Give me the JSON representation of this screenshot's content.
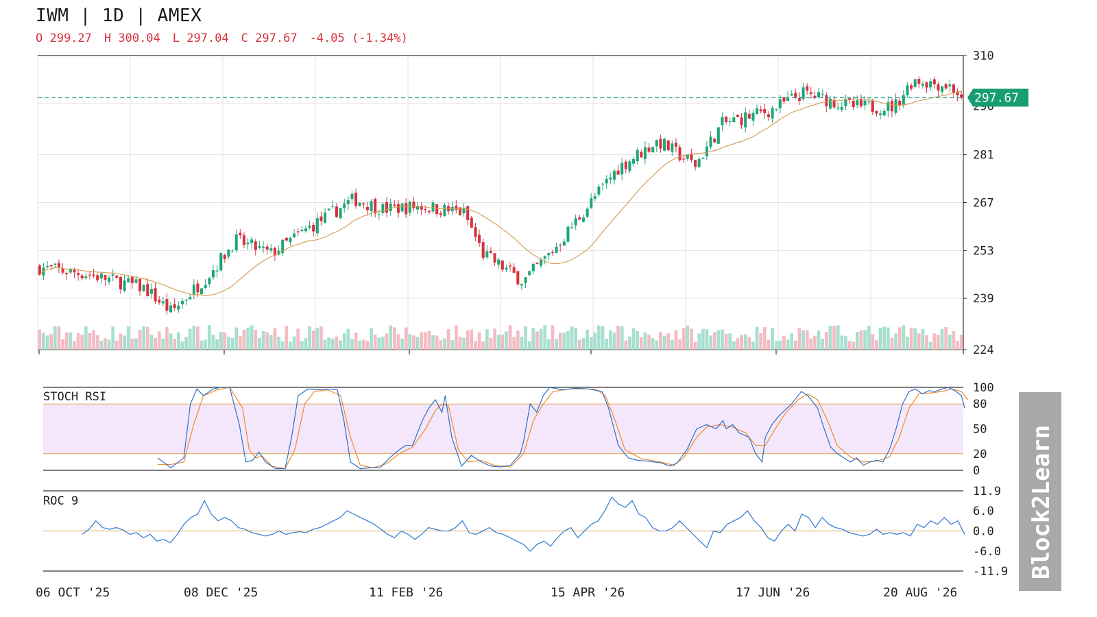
{
  "header": {
    "title": "IWM | 1D | AMEX",
    "open": "O 299.27",
    "high": "H 300.04",
    "low": "L 297.04",
    "close": "C 297.67",
    "change": "-4.05 (-1.34%)"
  },
  "watermark": "Block2Learn",
  "colors": {
    "up": "#1fa67a",
    "down": "#d8313e",
    "up_volume": "#a8dfd0",
    "down_volume": "#f3bcc3",
    "ma": "#d4a05a",
    "stoch_k": "#2c6fc9",
    "stoch_d": "#f08a2c",
    "roc": "#3b7fd6",
    "band_fill": "#f4e7fb",
    "level_line": "#d9a14a",
    "price_tag": "#179d72"
  },
  "chart_data": [
    {
      "type": "candlestick",
      "title": "IWM | 1D | AMEX",
      "x_tick_labels": [
        "06 OCT '25",
        "08 DEC '25",
        "11 FEB '26",
        "15 APR '26",
        "17 JUN '26",
        "20 AUG '26"
      ],
      "y_tick_labels": [
        "310",
        "281",
        "267",
        "253",
        "239",
        "224"
      ],
      "ylim": [
        224,
        310
      ],
      "last_price_label": "297.67",
      "last_price": 297.67,
      "overlay": "moving average",
      "volume_bars": true,
      "grid": true,
      "close_path": [
        {
          "x": "06 OCT '25",
          "y": 248
        },
        {
          "x": "24 OCT '25",
          "y": 246
        },
        {
          "x": "14 NOV '25",
          "y": 242
        },
        {
          "x": "24 NOV '25",
          "y": 235
        },
        {
          "x": "08 DEC '25",
          "y": 246
        },
        {
          "x": "18 DEC '25",
          "y": 256
        },
        {
          "x": "31 DEC '25",
          "y": 252
        },
        {
          "x": "15 JAN '26",
          "y": 260
        },
        {
          "x": "31 JAN '26",
          "y": 268
        },
        {
          "x": "11 FEB '26",
          "y": 265
        },
        {
          "x": "25 FEB '26",
          "y": 266
        },
        {
          "x": "13 MAR '26",
          "y": 264
        },
        {
          "x": "20 MAR '26",
          "y": 252
        },
        {
          "x": "04 APR '26",
          "y": 244
        },
        {
          "x": "15 APR '26",
          "y": 253
        },
        {
          "x": "24 APR '26",
          "y": 262
        },
        {
          "x": "09 MAY '26",
          "y": 277
        },
        {
          "x": "24 MAY '26",
          "y": 285
        },
        {
          "x": "07 JUN '26",
          "y": 278
        },
        {
          "x": "17 JUN '26",
          "y": 290
        },
        {
          "x": "05 JUL '26",
          "y": 294
        },
        {
          "x": "17 JUL '26",
          "y": 299
        },
        {
          "x": "05 AUG '26",
          "y": 295
        },
        {
          "x": "20 AUG '26",
          "y": 295
        },
        {
          "x": "27 AUG '26",
          "y": 303
        },
        {
          "x": "10 SEP '26",
          "y": 301
        },
        {
          "x": "14 SEP '26",
          "y": 297.67
        }
      ]
    },
    {
      "type": "line",
      "title": "STOCH RSI",
      "y_tick_labels": [
        "100",
        "80",
        "50",
        "20",
        "0"
      ],
      "ylim": [
        0,
        100
      ],
      "levels": [
        20,
        80
      ],
      "k_series": [
        [
          0.13,
          15
        ],
        [
          0.15,
          3
        ],
        [
          0.17,
          15
        ],
        [
          0.18,
          80
        ],
        [
          0.19,
          98
        ],
        [
          0.2,
          90
        ],
        [
          0.215,
          98
        ],
        [
          0.225,
          100
        ],
        [
          0.24,
          100
        ],
        [
          0.255,
          55
        ],
        [
          0.265,
          10
        ],
        [
          0.275,
          12
        ],
        [
          0.285,
          22
        ],
        [
          0.295,
          10
        ],
        [
          0.31,
          2
        ],
        [
          0.325,
          2
        ],
        [
          0.335,
          40
        ],
        [
          0.345,
          90
        ],
        [
          0.36,
          98
        ],
        [
          0.375,
          97
        ],
        [
          0.39,
          98
        ],
        [
          0.405,
          97
        ],
        [
          0.415,
          60
        ],
        [
          0.425,
          10
        ],
        [
          0.44,
          2
        ],
        [
          0.455,
          3
        ],
        [
          0.47,
          3
        ],
        [
          0.485,
          15
        ],
        [
          0.5,
          25
        ],
        [
          0.51,
          30
        ],
        [
          0.52,
          30
        ],
        [
          0.535,
          60
        ],
        [
          0.545,
          75
        ],
        [
          0.555,
          85
        ],
        [
          0.565,
          70
        ],
        [
          0.57,
          90
        ],
        [
          0.58,
          40
        ],
        [
          0.595,
          5
        ],
        [
          0.61,
          18
        ],
        [
          0.625,
          10
        ],
        [
          0.64,
          5
        ],
        [
          0.655,
          4
        ],
        [
          0.67,
          6
        ],
        [
          0.685,
          20
        ],
        [
          0.69,
          35
        ],
        [
          0.7,
          80
        ],
        [
          0.71,
          70
        ],
        [
          0.72,
          90
        ],
        [
          0.73,
          100
        ],
        [
          0.75,
          97
        ],
        [
          0.77,
          99
        ],
        [
          0.79,
          98
        ],
        [
          0.81,
          95
        ],
        [
          0.82,
          75
        ],
        [
          0.835,
          30
        ],
        [
          0.85,
          15
        ],
        [
          0.865,
          12
        ],
        [
          0.88,
          11
        ],
        [
          0.9,
          9
        ],
        [
          0.915,
          5
        ],
        [
          0.925,
          9
        ],
        [
          0.94,
          25
        ],
        [
          0.955,
          50
        ],
        [
          0.97,
          55
        ],
        [
          0.985,
          50
        ],
        [
          0.995,
          60
        ],
        [
          1.0,
          50
        ],
        [
          1.01,
          55
        ],
        [
          1.02,
          45
        ],
        [
          1.035,
          40
        ],
        [
          1.045,
          20
        ],
        [
          1.055,
          10
        ],
        [
          1.06,
          40
        ],
        [
          1.07,
          55
        ],
        [
          1.08,
          65
        ],
        [
          1.1,
          80
        ],
        [
          1.115,
          95
        ],
        [
          1.125,
          90
        ],
        [
          1.14,
          75
        ],
        [
          1.15,
          50
        ],
        [
          1.16,
          28
        ],
        [
          1.17,
          20
        ],
        [
          1.18,
          15
        ],
        [
          1.19,
          10
        ],
        [
          1.2,
          15
        ],
        [
          1.21,
          6
        ],
        [
          1.22,
          10
        ],
        [
          1.23,
          12
        ],
        [
          1.24,
          10
        ],
        [
          1.25,
          25
        ],
        [
          1.26,
          50
        ],
        [
          1.27,
          80
        ],
        [
          1.28,
          95
        ],
        [
          1.29,
          98
        ],
        [
          1.3,
          92
        ],
        [
          1.31,
          96
        ],
        [
          1.32,
          95
        ],
        [
          1.33,
          98
        ],
        [
          1.34,
          100
        ],
        [
          1.35,
          96
        ],
        [
          1.36,
          90
        ],
        [
          1.365,
          75
        ]
      ],
      "d_series": [
        [
          0.13,
          7
        ],
        [
          0.15,
          7
        ],
        [
          0.17,
          10
        ],
        [
          0.185,
          55
        ],
        [
          0.2,
          90
        ],
        [
          0.21,
          93
        ],
        [
          0.22,
          97
        ],
        [
          0.24,
          100
        ],
        [
          0.26,
          75
        ],
        [
          0.27,
          25
        ],
        [
          0.28,
          15
        ],
        [
          0.29,
          17
        ],
        [
          0.305,
          5
        ],
        [
          0.325,
          2
        ],
        [
          0.34,
          25
        ],
        [
          0.355,
          80
        ],
        [
          0.37,
          95
        ],
        [
          0.39,
          97
        ],
        [
          0.41,
          90
        ],
        [
          0.425,
          40
        ],
        [
          0.44,
          6
        ],
        [
          0.46,
          3
        ],
        [
          0.48,
          8
        ],
        [
          0.5,
          20
        ],
        [
          0.52,
          28
        ],
        [
          0.54,
          50
        ],
        [
          0.555,
          72
        ],
        [
          0.565,
          80
        ],
        [
          0.575,
          78
        ],
        [
          0.59,
          25
        ],
        [
          0.605,
          10
        ],
        [
          0.625,
          12
        ],
        [
          0.645,
          6
        ],
        [
          0.67,
          4
        ],
        [
          0.69,
          20
        ],
        [
          0.705,
          60
        ],
        [
          0.72,
          80
        ],
        [
          0.735,
          95
        ],
        [
          0.76,
          98
        ],
        [
          0.8,
          98
        ],
        [
          0.815,
          90
        ],
        [
          0.83,
          60
        ],
        [
          0.845,
          25
        ],
        [
          0.87,
          14
        ],
        [
          0.9,
          10
        ],
        [
          0.92,
          6
        ],
        [
          0.935,
          15
        ],
        [
          0.955,
          40
        ],
        [
          0.97,
          52
        ],
        [
          0.99,
          55
        ],
        [
          1.01,
          52
        ],
        [
          1.03,
          45
        ],
        [
          1.045,
          30
        ],
        [
          1.06,
          30
        ],
        [
          1.075,
          50
        ],
        [
          1.09,
          68
        ],
        [
          1.11,
          85
        ],
        [
          1.125,
          92
        ],
        [
          1.14,
          85
        ],
        [
          1.155,
          60
        ],
        [
          1.17,
          30
        ],
        [
          1.19,
          16
        ],
        [
          1.21,
          10
        ],
        [
          1.23,
          11
        ],
        [
          1.25,
          16
        ],
        [
          1.265,
          40
        ],
        [
          1.28,
          75
        ],
        [
          1.295,
          92
        ],
        [
          1.31,
          93
        ],
        [
          1.33,
          95
        ],
        [
          1.345,
          98
        ],
        [
          1.36,
          95
        ],
        [
          1.37,
          85
        ]
      ]
    },
    {
      "type": "line",
      "title": "ROC 9",
      "y_tick_labels": [
        "11.9",
        "6.0",
        "0.0",
        "-6.0",
        "-11.9"
      ],
      "ylim": [
        -11.9,
        11.9
      ],
      "zero_line": 0.0,
      "series": [
        [
          0.065,
          -1
        ],
        [
          0.075,
          0.5
        ],
        [
          0.085,
          3
        ],
        [
          0.095,
          1
        ],
        [
          0.105,
          0.5
        ],
        [
          0.115,
          1
        ],
        [
          0.125,
          0.3
        ],
        [
          0.135,
          -1
        ],
        [
          0.145,
          -0.5
        ],
        [
          0.155,
          -2
        ],
        [
          0.165,
          -1
        ],
        [
          0.175,
          -3
        ],
        [
          0.185,
          -2.5
        ],
        [
          0.195,
          -3.5
        ],
        [
          0.205,
          -1
        ],
        [
          0.215,
          2
        ],
        [
          0.225,
          4
        ],
        [
          0.235,
          5
        ],
        [
          0.245,
          9
        ],
        [
          0.255,
          5
        ],
        [
          0.265,
          3
        ],
        [
          0.275,
          4
        ],
        [
          0.285,
          3
        ],
        [
          0.295,
          1
        ],
        [
          0.305,
          0.5
        ],
        [
          0.315,
          -0.5
        ],
        [
          0.325,
          -1
        ],
        [
          0.335,
          -1.5
        ],
        [
          0.345,
          -1
        ],
        [
          0.355,
          0
        ],
        [
          0.365,
          -1
        ],
        [
          0.375,
          -0.5
        ],
        [
          0.385,
          -0.2
        ],
        [
          0.395,
          -0.5
        ],
        [
          0.405,
          0.5
        ],
        [
          0.415,
          1
        ],
        [
          0.425,
          2
        ],
        [
          0.435,
          3
        ],
        [
          0.445,
          4
        ],
        [
          0.455,
          6
        ],
        [
          0.465,
          5
        ],
        [
          0.475,
          4
        ],
        [
          0.485,
          3
        ],
        [
          0.495,
          2
        ],
        [
          0.505,
          0.5
        ],
        [
          0.515,
          -1
        ],
        [
          0.525,
          -2
        ],
        [
          0.535,
          0
        ],
        [
          0.545,
          -1
        ],
        [
          0.555,
          -2.5
        ],
        [
          0.565,
          -1
        ],
        [
          0.575,
          1
        ],
        [
          0.585,
          0.5
        ],
        [
          0.595,
          0
        ],
        [
          0.605,
          0
        ],
        [
          0.615,
          1
        ],
        [
          0.625,
          3
        ],
        [
          0.635,
          -0.5
        ],
        [
          0.645,
          -1
        ],
        [
          0.655,
          0
        ],
        [
          0.665,
          1
        ],
        [
          0.675,
          -0.5
        ],
        [
          0.685,
          -1
        ],
        [
          0.695,
          -2
        ],
        [
          0.705,
          -3
        ],
        [
          0.715,
          -4
        ],
        [
          0.725,
          -6
        ],
        [
          0.735,
          -4
        ],
        [
          0.745,
          -3
        ],
        [
          0.755,
          -4.5
        ],
        [
          0.765,
          -2
        ],
        [
          0.775,
          0
        ],
        [
          0.785,
          1
        ],
        [
          0.795,
          -2
        ],
        [
          0.805,
          0
        ],
        [
          0.815,
          2
        ],
        [
          0.825,
          3
        ],
        [
          0.835,
          6
        ],
        [
          0.845,
          10
        ],
        [
          0.855,
          8
        ],
        [
          0.865,
          7
        ],
        [
          0.875,
          9
        ],
        [
          0.885,
          5
        ],
        [
          0.895,
          4
        ],
        [
          0.905,
          1
        ],
        [
          0.915,
          0
        ],
        [
          0.925,
          0
        ],
        [
          0.935,
          1
        ],
        [
          0.945,
          3
        ],
        [
          0.955,
          1
        ],
        [
          0.965,
          -1
        ],
        [
          0.975,
          -3
        ],
        [
          0.985,
          -5
        ],
        [
          0.995,
          0
        ],
        [
          1.005,
          -0.5
        ],
        [
          1.015,
          2
        ],
        [
          1.025,
          3
        ],
        [
          1.035,
          4
        ],
        [
          1.045,
          6
        ],
        [
          1.055,
          3
        ],
        [
          1.065,
          1
        ],
        [
          1.075,
          -2
        ],
        [
          1.085,
          -3
        ],
        [
          1.095,
          0
        ],
        [
          1.105,
          2
        ],
        [
          1.115,
          0
        ],
        [
          1.125,
          5
        ],
        [
          1.135,
          4
        ],
        [
          1.145,
          1
        ],
        [
          1.155,
          4
        ],
        [
          1.165,
          2
        ],
        [
          1.175,
          1
        ],
        [
          1.185,
          0.5
        ],
        [
          1.195,
          -0.5
        ],
        [
          1.205,
          -1
        ],
        [
          1.215,
          -1.5
        ],
        [
          1.225,
          -1
        ],
        [
          1.235,
          0.5
        ],
        [
          1.245,
          -1
        ],
        [
          1.255,
          -0.5
        ],
        [
          1.265,
          -1
        ],
        [
          1.275,
          -0.5
        ],
        [
          1.285,
          -1.5
        ],
        [
          1.295,
          2
        ],
        [
          1.305,
          1
        ],
        [
          1.315,
          3
        ],
        [
          1.325,
          2
        ],
        [
          1.335,
          4
        ],
        [
          1.345,
          2
        ],
        [
          1.355,
          3
        ],
        [
          1.365,
          -1
        ]
      ]
    }
  ]
}
